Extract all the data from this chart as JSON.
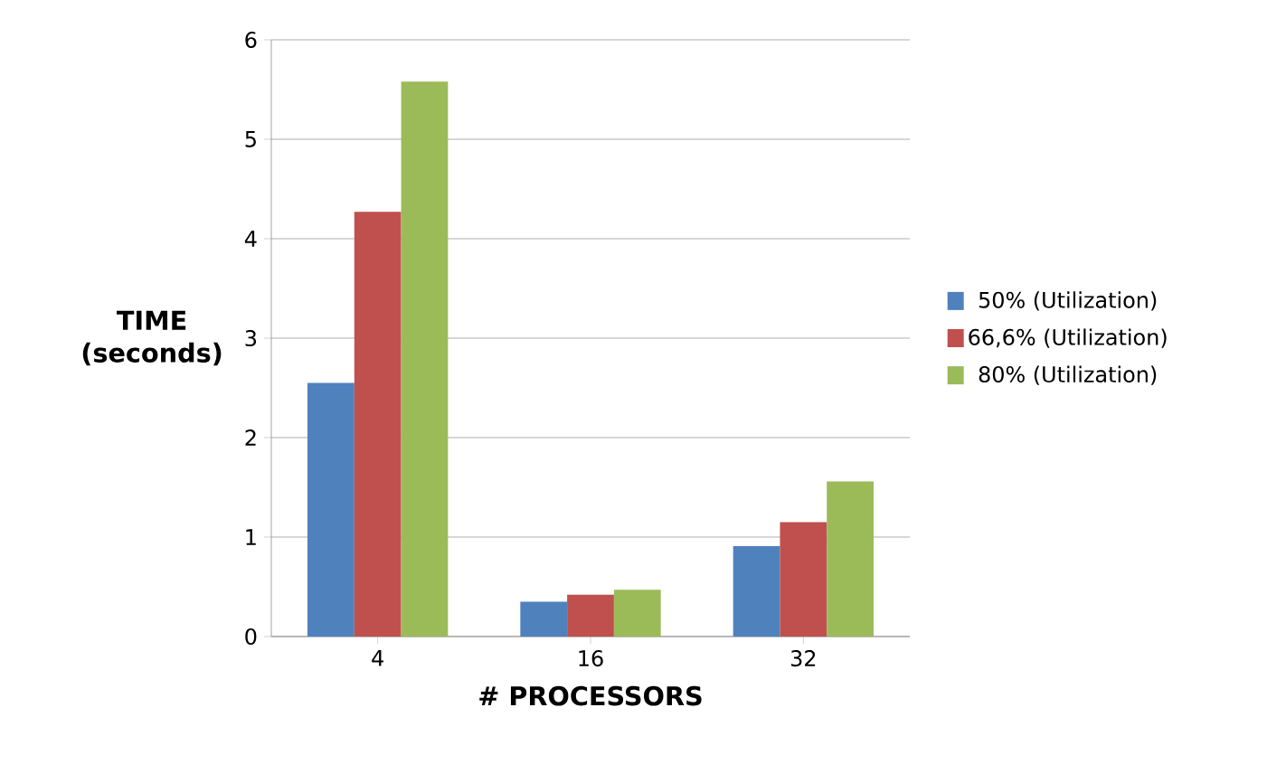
{
  "chart_data": {
    "type": "bar",
    "xlabel": "# PROCESSORS",
    "ylabel": "TIME (seconds)",
    "categories": [
      "4",
      "16",
      "32"
    ],
    "series": [
      {
        "name": "50% (Utilization)",
        "color": "#4f81bd",
        "values": [
          2.55,
          0.35,
          0.91
        ]
      },
      {
        "name": "66,6% (Utilization)",
        "color": "#c0504d",
        "values": [
          4.27,
          0.42,
          1.15
        ]
      },
      {
        "name": "80% (Utilization)",
        "color": "#9bbb59",
        "values": [
          5.58,
          0.47,
          1.56
        ]
      }
    ],
    "ylim": [
      0,
      6
    ],
    "yticks": [
      0,
      1,
      2,
      3,
      4,
      5,
      6
    ],
    "legend": "right",
    "grid": "y"
  }
}
